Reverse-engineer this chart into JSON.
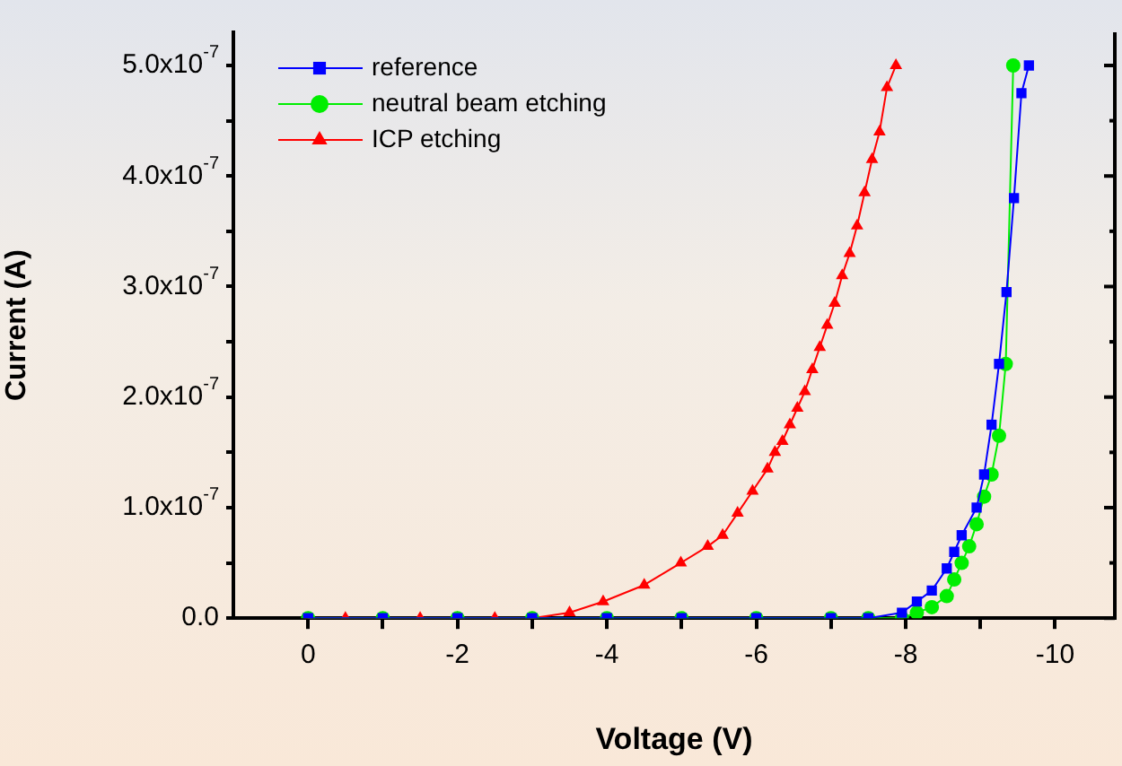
{
  "chart_data": {
    "type": "line",
    "xlabel": "Voltage (V)",
    "ylabel": "Current (A)",
    "xlim": [
      1.0,
      -10.8
    ],
    "xticks": [
      0,
      {
        "value": -1,
        "label": null
      },
      -2,
      {
        "value": -3,
        "label": null
      },
      -4,
      {
        "value": -5,
        "label": null
      },
      -6,
      {
        "value": -7,
        "label": null
      },
      -8,
      {
        "value": -9,
        "label": null
      },
      -10
    ],
    "ylim": [
      0,
      5.3e-07
    ],
    "yticks": [
      {
        "value": 0,
        "label": "0.0"
      },
      {
        "value": 5e-08,
        "label": null
      },
      {
        "value": 1e-07,
        "label": "1.0x10$^{-7}$"
      },
      {
        "value": 1.5e-07,
        "label": null
      },
      {
        "value": 2e-07,
        "label": "2.0x10$^{-7}$"
      },
      {
        "value": 2.5e-07,
        "label": null
      },
      {
        "value": 3e-07,
        "label": "3.0x10$^{-7}$"
      },
      {
        "value": 3.5e-07,
        "label": null
      },
      {
        "value": 4e-07,
        "label": "4.0x10$^{-7}$"
      },
      {
        "value": 4.5e-07,
        "label": null
      },
      {
        "value": 5e-07,
        "label": "5.0x10$^{-7}$"
      }
    ],
    "grid": false,
    "legend": "top left",
    "line_style": "solid",
    "series": [
      {
        "name": "reference",
        "color": "#0000ff",
        "marker": "square",
        "x": [
          0,
          -1,
          -2,
          -3,
          -4,
          -5,
          -6,
          -7,
          -7.5,
          -7.95,
          -8.15,
          -8.35,
          -8.55,
          -8.65,
          -8.75,
          -8.95,
          -9.05,
          -9.15,
          -9.25,
          -9.35,
          -9.45,
          -9.55,
          -9.65
        ],
        "values": [
          0,
          0,
          0,
          0,
          0,
          0,
          0,
          0,
          0,
          5e-09,
          1.5e-08,
          2.5e-08,
          4.5e-08,
          6e-08,
          7.5e-08,
          1e-07,
          1.3e-07,
          1.75e-07,
          2.3e-07,
          2.95e-07,
          3.8e-07,
          4.75e-07,
          5e-07
        ]
      },
      {
        "name": "neutral beam etching",
        "color": "#00ee00",
        "marker": "circle",
        "x": [
          0,
          -1,
          -2,
          -3,
          -4,
          -5,
          -6,
          -7,
          -7.5,
          -7.95,
          -8.15,
          -8.35,
          -8.55,
          -8.65,
          -8.75,
          -8.85,
          -8.95,
          -9.05,
          -9.15,
          -9.25,
          -9.34,
          -9.44
        ],
        "values": [
          0,
          0,
          0,
          0,
          0,
          0,
          0,
          0,
          0,
          0,
          5e-09,
          1e-08,
          2e-08,
          3.5e-08,
          5e-08,
          6.5e-08,
          8.5e-08,
          1.1e-07,
          1.3e-07,
          1.65e-07,
          2.3e-07,
          5e-07
        ]
      },
      {
        "name": "ICP etching",
        "color": "#ff0000",
        "marker": "triangle",
        "x": [
          0,
          -0.5,
          -1,
          -1.5,
          -2,
          -2.5,
          -3,
          -3.5,
          -3.95,
          -4.5,
          -4.99,
          -5.35,
          -5.55,
          -5.75,
          -5.95,
          -6.15,
          -6.25,
          -6.35,
          -6.45,
          -6.55,
          -6.65,
          -6.75,
          -6.85,
          -6.95,
          -7.05,
          -7.15,
          -7.25,
          -7.35,
          -7.45,
          -7.55,
          -7.65,
          -7.75,
          -7.87
        ],
        "values": [
          0,
          0,
          0,
          0,
          0,
          0,
          0,
          5e-09,
          1.5e-08,
          3e-08,
          5e-08,
          6.5e-08,
          7.5e-08,
          9.5e-08,
          1.15e-07,
          1.35e-07,
          1.5e-07,
          1.6e-07,
          1.75e-07,
          1.9e-07,
          2.05e-07,
          2.25e-07,
          2.45e-07,
          2.65e-07,
          2.85e-07,
          3.1e-07,
          3.3e-07,
          3.55e-07,
          3.85e-07,
          4.15e-07,
          4.4e-07,
          4.8e-07,
          5e-07
        ]
      }
    ]
  }
}
